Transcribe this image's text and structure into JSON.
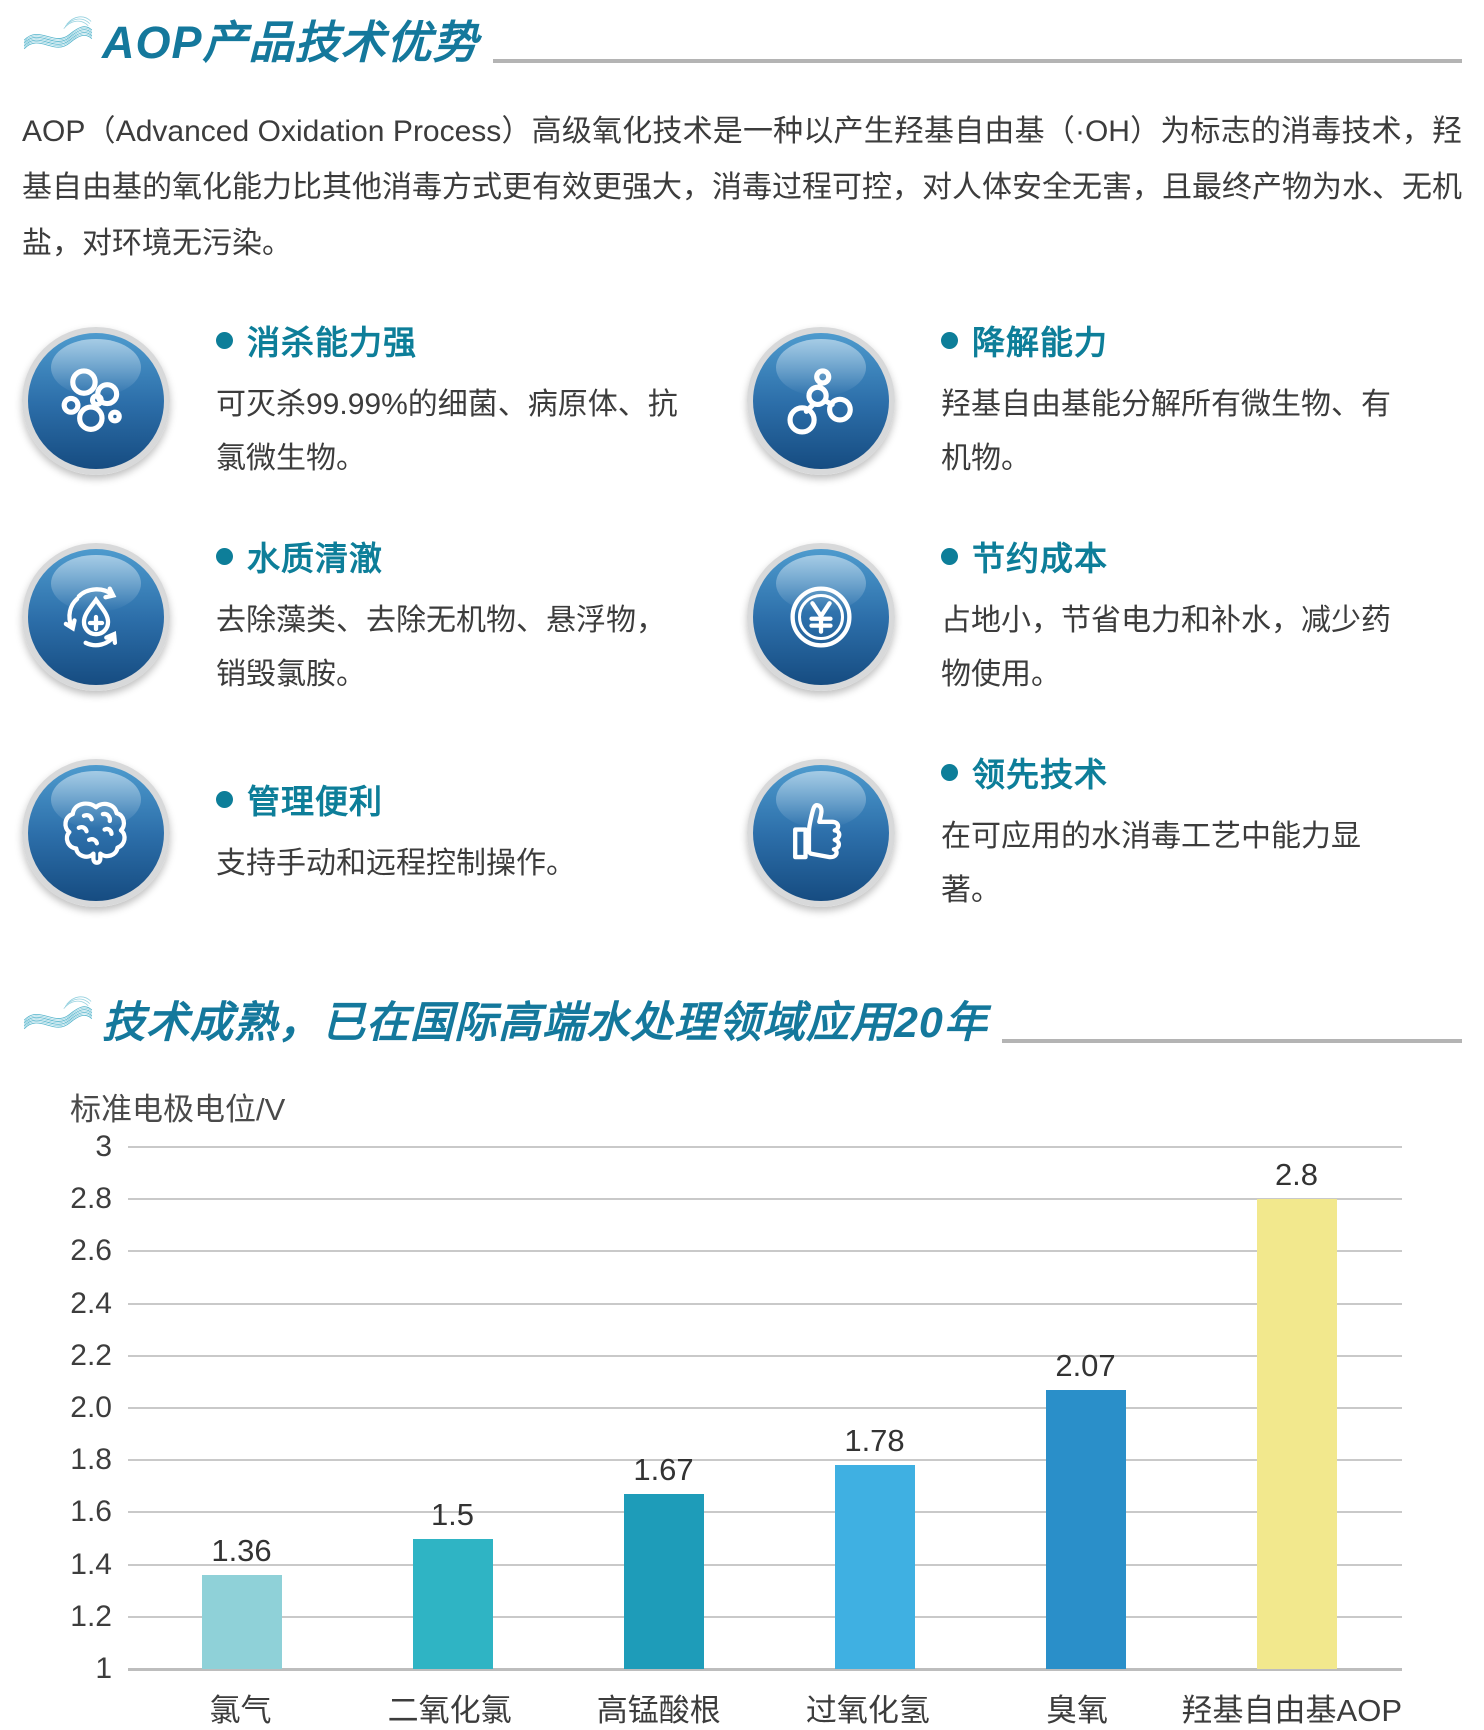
{
  "section1": {
    "title": "AOP产品技术优势",
    "intro": "AOP（Advanced Oxidation Process）高级氧化技术是一种以产生羟基自由基（·OH）为标志的消毒技术，羟基自由基的氧化能力比其他消毒方式更有效更强大，消毒过程可控，对人体安全无害，且最终产物为水、无机盐，对环境无污染。",
    "features": [
      {
        "icon": "bubbles-icon",
        "title": "消杀能力强",
        "desc": "可灭杀99.99%的细菌、病原体、抗氯微生物。"
      },
      {
        "icon": "molecule-icon",
        "title": "降解能力",
        "desc": "羟基自由基能分解所有微生物、有机物。"
      },
      {
        "icon": "water-cycle-icon",
        "title": "水质清澈",
        "desc": "去除藻类、去除无机物、悬浮物，销毁氯胺。"
      },
      {
        "icon": "coin-yuan-icon",
        "title": "节约成本",
        "desc": "占地小，节省电力和补水，减少药物使用。"
      },
      {
        "icon": "brain-icon",
        "title": "管理便利",
        "desc": "支持手动和远程控制操作。"
      },
      {
        "icon": "thumbs-up-icon",
        "title": "领先技术",
        "desc": "在可应用的水消毒工艺中能力显著。"
      }
    ]
  },
  "section2": {
    "title": "技术成熟，已在国际高端水处理领域应用20年"
  },
  "chart_data": {
    "type": "bar",
    "title": "",
    "ylabel": "标准电极电位/V",
    "xlabel": "",
    "categories": [
      "氯气",
      "二氧化氯",
      "高锰酸根",
      "过氧化氢",
      "臭氧",
      "羟基自由基AOP"
    ],
    "values": [
      1.36,
      1.5,
      1.67,
      1.78,
      2.07,
      2.8
    ],
    "bar_colors": [
      "#8fd1d8",
      "#2fb4c4",
      "#1e9cb9",
      "#3fb0e2",
      "#2a8fc9",
      "#f2e88d"
    ],
    "ylim": [
      1,
      3
    ],
    "yticks": [
      "3",
      "2.8",
      "2.6",
      "2.4",
      "2.2",
      "2.0",
      "1.8",
      "1.6",
      "1.4",
      "1.2",
      "1"
    ],
    "grid": true,
    "legend_position": "none"
  },
  "colors": {
    "heading": "#14789c",
    "feature_title": "#0d7e99",
    "body_text": "#3c3c3c",
    "rule": "#b4b4b4",
    "sphere_top": "#4e9bce",
    "sphere_bottom": "#164c81"
  }
}
